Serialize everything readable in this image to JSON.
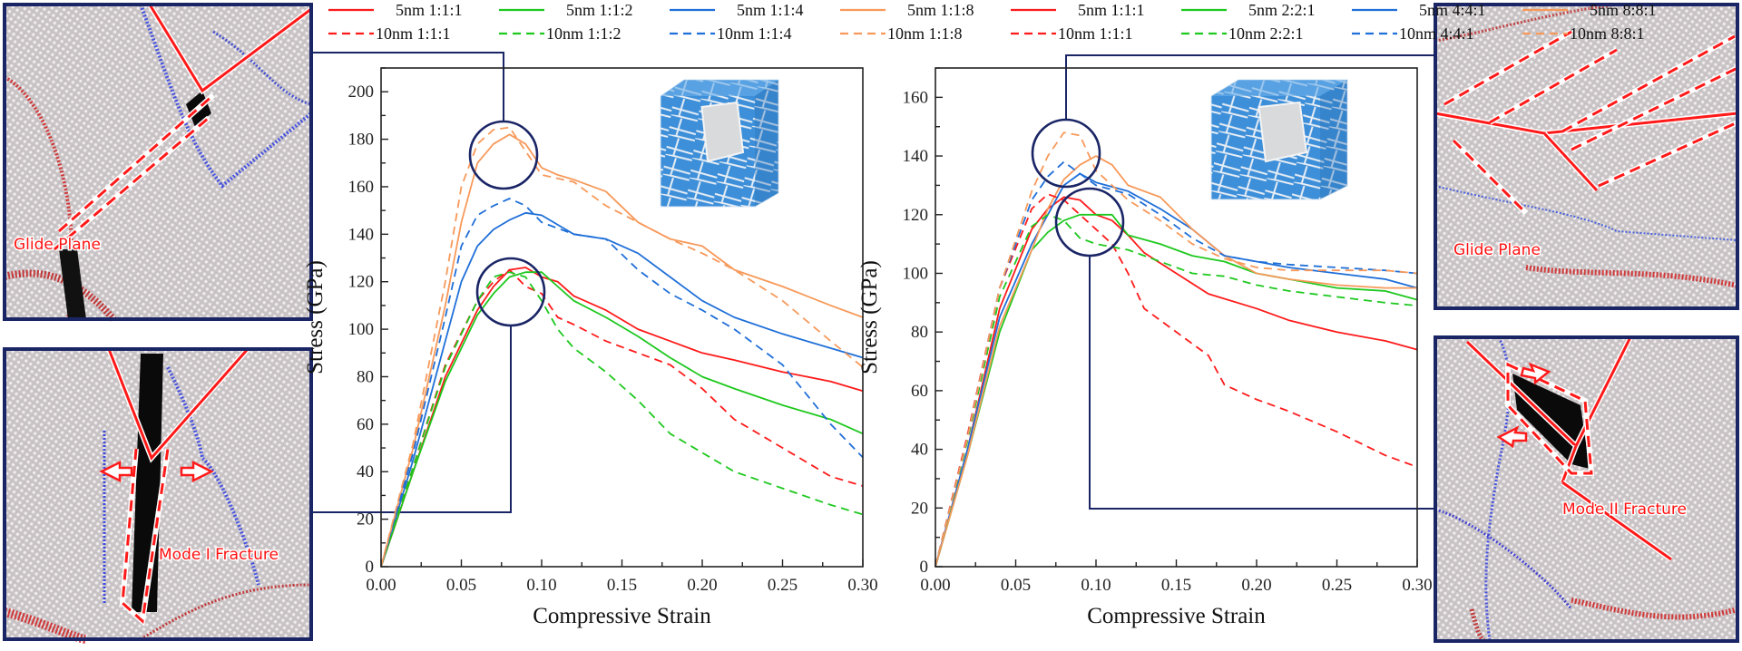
{
  "colors": {
    "red": "#ff1a1a",
    "green": "#1ec81e",
    "blue": "#1f6fd8",
    "orange": "#f7995a",
    "frame": "#1a2566",
    "grain": "#3d8fd9"
  },
  "legend": {
    "row1": [
      "5nm 1:1:1",
      "5nm 1:1:2",
      "5nm 1:1:4",
      "5nm 1:1:8",
      "5nm 1:1:1",
      "5nm 2:2:1",
      "5nm 4:4:1",
      "5nm 8:8:1"
    ],
    "row2": [
      "10nm 1:1:1",
      "10nm 1:1:2",
      "10nm 1:1:4",
      "10nm 1:1:8",
      "10nm 1:1:1",
      "10nm 2:2:1",
      "10nm 4:4:1",
      "10nm 8:8:1"
    ],
    "row_colors": [
      "red",
      "green",
      "blue",
      "orange",
      "red",
      "green",
      "blue",
      "orange"
    ]
  },
  "panels": {
    "left_top": {
      "label": "Glide Plane"
    },
    "left_bottom": {
      "label": "Mode I Fracture"
    },
    "right_top": {
      "label": "Glide Plane"
    },
    "right_bottom": {
      "label": "Mode II Fracture"
    }
  },
  "chart_data": [
    {
      "type": "line",
      "xlabel": "Compressive Strain",
      "ylabel": "Stress (GPa)",
      "xlim": [
        0,
        0.3
      ],
      "ylim": [
        0,
        210
      ],
      "xticks": [
        0.0,
        0.05,
        0.1,
        0.15,
        0.2,
        0.25,
        0.3
      ],
      "yticks": [
        0,
        20,
        40,
        60,
        80,
        100,
        120,
        140,
        160,
        180,
        200
      ],
      "grid": false,
      "series": [
        {
          "name": "5nm 1:1:1",
          "color": "red",
          "dash": false,
          "x": [
            0,
            0.02,
            0.04,
            0.06,
            0.07,
            0.08,
            0.09,
            0.1,
            0.11,
            0.12,
            0.14,
            0.16,
            0.18,
            0.2,
            0.22,
            0.25,
            0.28,
            0.3
          ],
          "y": [
            0,
            40,
            80,
            108,
            118,
            125,
            126,
            122,
            120,
            114,
            108,
            100,
            95,
            90,
            87,
            82,
            78,
            74
          ]
        },
        {
          "name": "5nm 1:1:2",
          "color": "green",
          "dash": false,
          "x": [
            0,
            0.02,
            0.04,
            0.06,
            0.07,
            0.08,
            0.09,
            0.1,
            0.11,
            0.12,
            0.14,
            0.16,
            0.18,
            0.2,
            0.22,
            0.25,
            0.28,
            0.3
          ],
          "y": [
            0,
            40,
            78,
            106,
            115,
            122,
            124,
            124,
            118,
            112,
            105,
            97,
            88,
            80,
            75,
            68,
            62,
            56
          ]
        },
        {
          "name": "5nm 1:1:4",
          "color": "blue",
          "dash": false,
          "x": [
            0,
            0.02,
            0.04,
            0.05,
            0.06,
            0.07,
            0.08,
            0.09,
            0.1,
            0.11,
            0.12,
            0.14,
            0.16,
            0.18,
            0.2,
            0.22,
            0.25,
            0.28,
            0.3
          ],
          "y": [
            0,
            45,
            95,
            120,
            135,
            142,
            146,
            149,
            148,
            144,
            140,
            138,
            132,
            122,
            112,
            105,
            98,
            92,
            88
          ]
        },
        {
          "name": "5nm 1:1:8",
          "color": "orange",
          "dash": false,
          "x": [
            0,
            0.02,
            0.04,
            0.05,
            0.06,
            0.07,
            0.08,
            0.09,
            0.1,
            0.11,
            0.12,
            0.14,
            0.16,
            0.18,
            0.2,
            0.22,
            0.25,
            0.28,
            0.3
          ],
          "y": [
            0,
            50,
            110,
            145,
            170,
            178,
            182,
            178,
            168,
            165,
            163,
            158,
            145,
            138,
            135,
            125,
            118,
            110,
            105
          ]
        },
        {
          "name": "10nm 1:1:1",
          "color": "red",
          "dash": true,
          "x": [
            0,
            0.02,
            0.04,
            0.06,
            0.07,
            0.08,
            0.09,
            0.1,
            0.11,
            0.12,
            0.14,
            0.16,
            0.18,
            0.2,
            0.22,
            0.25,
            0.28,
            0.3
          ],
          "y": [
            0,
            42,
            85,
            112,
            120,
            125,
            118,
            115,
            105,
            102,
            95,
            90,
            85,
            75,
            62,
            50,
            38,
            34
          ]
        },
        {
          "name": "10nm 1:1:2",
          "color": "green",
          "dash": true,
          "x": [
            0,
            0.02,
            0.04,
            0.06,
            0.07,
            0.08,
            0.09,
            0.1,
            0.11,
            0.12,
            0.14,
            0.16,
            0.18,
            0.2,
            0.22,
            0.25,
            0.28,
            0.3
          ],
          "y": [
            0,
            42,
            84,
            112,
            122,
            124,
            122,
            112,
            100,
            92,
            82,
            70,
            56,
            48,
            40,
            33,
            26,
            22
          ]
        },
        {
          "name": "10nm 1:1:4",
          "color": "blue",
          "dash": true,
          "x": [
            0,
            0.02,
            0.04,
            0.05,
            0.06,
            0.07,
            0.08,
            0.09,
            0.1,
            0.12,
            0.14,
            0.16,
            0.18,
            0.2,
            0.22,
            0.25,
            0.28,
            0.3
          ],
          "y": [
            0,
            48,
            105,
            135,
            148,
            152,
            155,
            152,
            145,
            140,
            138,
            125,
            115,
            108,
            100,
            85,
            60,
            46
          ]
        },
        {
          "name": "10nm 1:1:8",
          "color": "orange",
          "dash": true,
          "x": [
            0,
            0.02,
            0.04,
            0.05,
            0.06,
            0.07,
            0.08,
            0.09,
            0.1,
            0.12,
            0.14,
            0.16,
            0.18,
            0.2,
            0.22,
            0.25,
            0.28,
            0.3
          ],
          "y": [
            0,
            52,
            120,
            160,
            178,
            184,
            185,
            175,
            165,
            162,
            152,
            145,
            138,
            132,
            125,
            112,
            95,
            84
          ]
        }
      ]
    },
    {
      "type": "line",
      "xlabel": "Compressive Strain",
      "ylabel": "Stress (GPa)",
      "xlim": [
        0,
        0.3
      ],
      "ylim": [
        0,
        170
      ],
      "xticks": [
        0.0,
        0.05,
        0.1,
        0.15,
        0.2,
        0.25,
        0.3
      ],
      "yticks": [
        0,
        20,
        40,
        60,
        80,
        100,
        120,
        140,
        160
      ],
      "grid": false,
      "series": [
        {
          "name": "5nm 1:1:1",
          "color": "red",
          "dash": false,
          "x": [
            0,
            0.02,
            0.04,
            0.06,
            0.07,
            0.08,
            0.09,
            0.1,
            0.11,
            0.12,
            0.13,
            0.15,
            0.17,
            0.2,
            0.22,
            0.25,
            0.28,
            0.3
          ],
          "y": [
            0,
            40,
            88,
            115,
            122,
            126,
            125,
            120,
            118,
            113,
            107,
            100,
            93,
            88,
            84,
            80,
            77,
            74
          ]
        },
        {
          "name": "5nm 2:2:1",
          "color": "green",
          "dash": false,
          "x": [
            0,
            0.02,
            0.04,
            0.06,
            0.07,
            0.08,
            0.09,
            0.1,
            0.11,
            0.12,
            0.14,
            0.16,
            0.18,
            0.2,
            0.22,
            0.25,
            0.28,
            0.3
          ],
          "y": [
            0,
            38,
            80,
            108,
            114,
            118,
            120,
            120,
            120,
            113,
            110,
            106,
            104,
            100,
            98,
            95,
            94,
            91
          ]
        },
        {
          "name": "5nm 4:4:1",
          "color": "blue",
          "dash": false,
          "x": [
            0,
            0.02,
            0.04,
            0.06,
            0.07,
            0.08,
            0.09,
            0.1,
            0.12,
            0.14,
            0.16,
            0.18,
            0.2,
            0.22,
            0.25,
            0.28,
            0.3
          ],
          "y": [
            0,
            40,
            85,
            110,
            120,
            130,
            134,
            131,
            128,
            122,
            115,
            106,
            104,
            102,
            100,
            98,
            95
          ]
        },
        {
          "name": "5nm 8:8:1",
          "color": "orange",
          "dash": false,
          "x": [
            0,
            0.02,
            0.04,
            0.06,
            0.07,
            0.08,
            0.09,
            0.1,
            0.11,
            0.12,
            0.14,
            0.16,
            0.18,
            0.2,
            0.22,
            0.25,
            0.28,
            0.3
          ],
          "y": [
            0,
            38,
            82,
            108,
            122,
            132,
            137,
            140,
            137,
            130,
            126,
            115,
            106,
            100,
            98,
            96,
            95,
            95
          ]
        },
        {
          "name": "10nm 1:1:1",
          "color": "red",
          "dash": true,
          "x": [
            0,
            0.02,
            0.04,
            0.06,
            0.07,
            0.08,
            0.09,
            0.1,
            0.11,
            0.12,
            0.13,
            0.15,
            0.17,
            0.18,
            0.2,
            0.22,
            0.25,
            0.28,
            0.3
          ],
          "y": [
            0,
            45,
            95,
            122,
            127,
            125,
            120,
            115,
            110,
            100,
            88,
            80,
            72,
            62,
            57,
            53,
            46,
            38,
            34
          ]
        },
        {
          "name": "10nm 2:2:1",
          "color": "green",
          "dash": true,
          "x": [
            0,
            0.02,
            0.04,
            0.06,
            0.07,
            0.08,
            0.09,
            0.1,
            0.12,
            0.14,
            0.16,
            0.18,
            0.2,
            0.22,
            0.25,
            0.28,
            0.3
          ],
          "y": [
            0,
            43,
            92,
            116,
            120,
            118,
            112,
            110,
            108,
            104,
            100,
            99,
            96,
            94,
            92,
            90,
            89
          ]
        },
        {
          "name": "10nm 4:4:1",
          "color": "blue",
          "dash": true,
          "x": [
            0,
            0.02,
            0.04,
            0.06,
            0.07,
            0.08,
            0.09,
            0.1,
            0.12,
            0.14,
            0.16,
            0.18,
            0.2,
            0.22,
            0.25,
            0.28,
            0.3
          ],
          "y": [
            0,
            44,
            95,
            125,
            133,
            138,
            134,
            130,
            127,
            120,
            112,
            106,
            104,
            103,
            102,
            101,
            100
          ]
        },
        {
          "name": "10nm 8:8:1",
          "color": "orange",
          "dash": true,
          "x": [
            0,
            0.02,
            0.04,
            0.06,
            0.07,
            0.08,
            0.09,
            0.1,
            0.12,
            0.14,
            0.16,
            0.18,
            0.2,
            0.22,
            0.25,
            0.28,
            0.3
          ],
          "y": [
            0,
            44,
            95,
            128,
            140,
            148,
            147,
            135,
            125,
            118,
            110,
            105,
            102,
            101,
            101,
            101,
            100
          ]
        }
      ]
    }
  ]
}
